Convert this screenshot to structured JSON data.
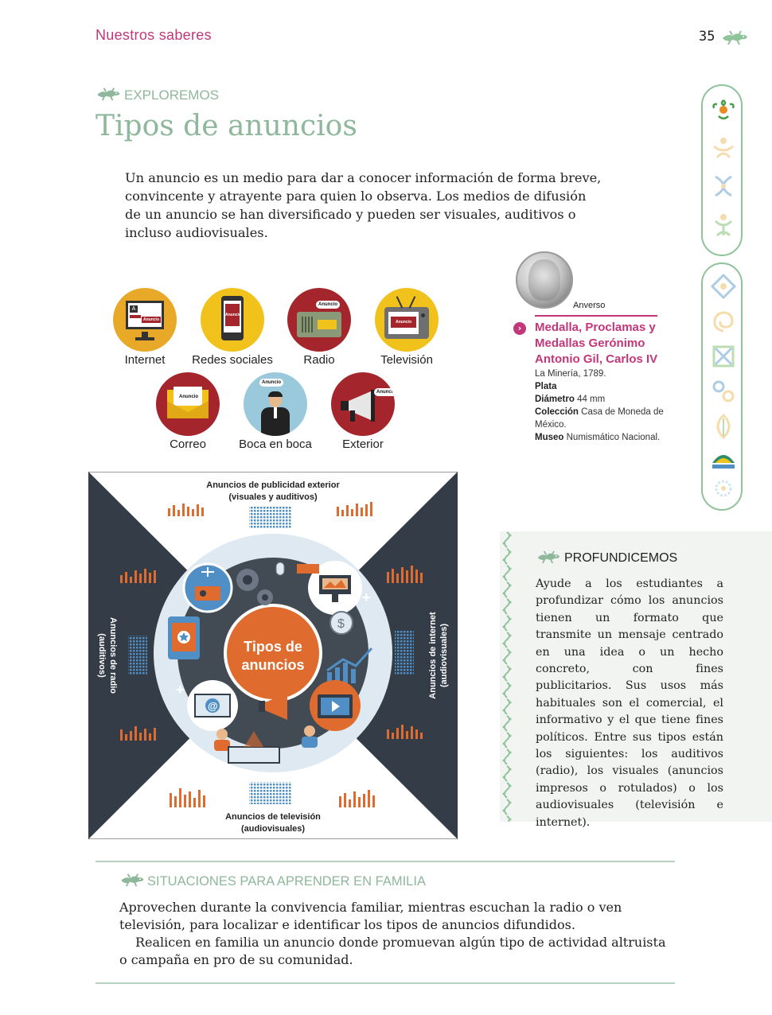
{
  "header": {
    "section": "Nuestros saberes",
    "page_number": "35"
  },
  "explore": {
    "label": "EXPLOREMOS",
    "title": "Tipos de anuncios",
    "intro": "Un anuncio es un medio para dar a conocer información de forma breve, convincente y atrayente para quien lo observa. Los medios de difusión de un anuncio se han diversificado y pueden ser visuales, auditivos o incluso audiovisuales."
  },
  "media": {
    "tag": "Anuncio",
    "screen_letter": "A",
    "items": [
      {
        "label": "Internet",
        "color": "#e9a928"
      },
      {
        "label": "Redes sociales",
        "color": "#f1c21b"
      },
      {
        "label": "Radio",
        "color": "#a4262c"
      },
      {
        "label": "Televisión",
        "color": "#f1c21b"
      },
      {
        "label": "Correo",
        "color": "#a4262c"
      },
      {
        "label": "Boca en boca",
        "color": "#9bc9dc"
      },
      {
        "label": "Exterior",
        "color": "#a4262c"
      }
    ]
  },
  "medal": {
    "anverso": "Anverso",
    "title": "Medalla, Proclamas y Medallas Gerónimo Antonio Gil, Carlos IV",
    "place": "La Minería, 1789.",
    "material": "Plata",
    "diameter_label": "Diámetro",
    "diameter_value": "44 mm",
    "collection_label": "Colección",
    "collection_value": "Casa de Moneda de México.",
    "museum_label": "Museo",
    "museum_value": "Numismático Nacional."
  },
  "infographic": {
    "center_line1": "Tipos de",
    "center_line2": "anuncios",
    "top_line1": "Anuncios de publicidad exterior",
    "top_line2": "(visuales y auditivos)",
    "bottom_line1": "Anuncios de televisión",
    "bottom_line2": "(audiovisuales)",
    "left_line1": "Anuncios de radio",
    "left_line2": "(auditivos)",
    "right_line1": "Anuncios de internet",
    "right_line2": "(audiovisuales)",
    "colors": {
      "dark": "#343c47",
      "orange": "#e06b2e",
      "light": "#dfe9f1"
    }
  },
  "profundicemos": {
    "label": "PROFUNDICEMOS",
    "body": "Ayude a los estudiantes a profundizar cómo los anuncios tienen un formato que transmite un mensaje centrado en una idea o un hecho concreto, con fines publicitarios. Sus usos más habituales son el comercial, el informativo y el que tiene fines políticos. Entre sus tipos están los siguientes: los auditivos (radio), los visuales (anuncios impresos o rotulados) o los audiovisuales (televisión e internet)."
  },
  "family": {
    "label": "SITUACIONES PARA APRENDER EN FAMILIA",
    "paragraph1": "Aprovechen durante la convivencia familiar, mientras escuchan la radio o ven televisión, para localizar e identificar los tipos de anuncios difundidos.",
    "paragraph2": "Realicen en familia un anuncio donde promuevan algún tipo de actividad altruista o campaña en pro de su comunidad."
  },
  "colors": {
    "accent": "#c2377a",
    "green": "#8fb79c"
  }
}
